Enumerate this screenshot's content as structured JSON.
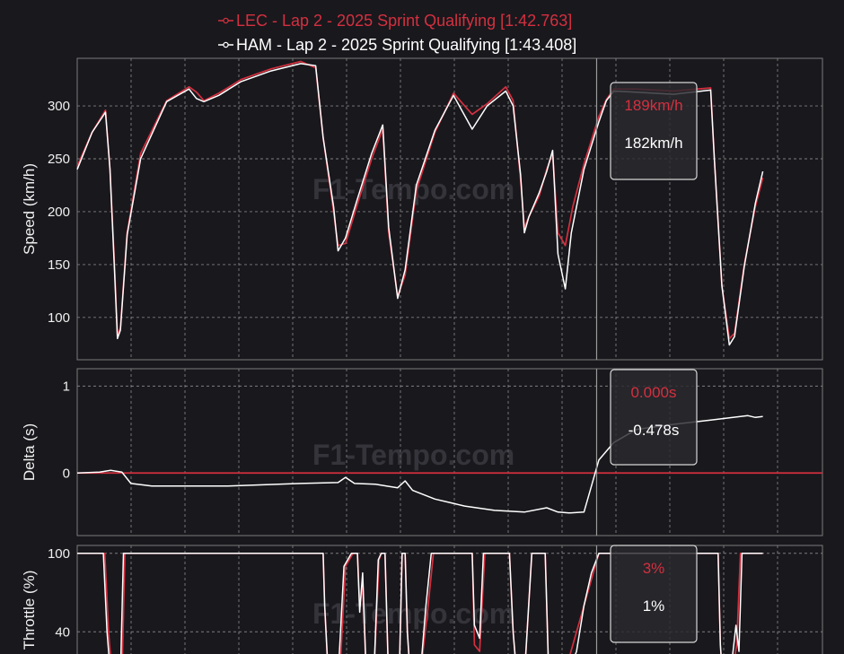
{
  "colors": {
    "background": "#19181d",
    "lec": "#d4303f",
    "ham": "#ffffff",
    "reference_line": "#d4303f",
    "cursor": "#9a9a9a"
  },
  "watermark": "F1-Tempo.com",
  "cursor_distance_fraction": 0.703,
  "chart_data": [
    {
      "type": "line",
      "legend_position": "top-center",
      "series": [
        {
          "name": "LEC - Lap 2 - 2025 Sprint Qualifying [1:42.763]"
        },
        {
          "name": "HAM - Lap 2 - 2025 Sprint Qualifying [1:43.408]"
        }
      ],
      "ylabel": "Speed (km/h)",
      "ylim": [
        60,
        345
      ],
      "yticks": [
        "100",
        "150",
        "200",
        "250",
        "300"
      ],
      "grid": true,
      "x_range": [
        0,
        1
      ],
      "lec": [
        [
          0,
          243
        ],
        [
          0.02,
          275
        ],
        [
          0.038,
          296
        ],
        [
          0.044,
          240
        ],
        [
          0.05,
          150
        ],
        [
          0.054,
          83
        ],
        [
          0.058,
          90
        ],
        [
          0.067,
          180
        ],
        [
          0.085,
          255
        ],
        [
          0.12,
          305
        ],
        [
          0.15,
          318
        ],
        [
          0.16,
          313
        ],
        [
          0.17,
          305
        ],
        [
          0.19,
          312
        ],
        [
          0.22,
          325
        ],
        [
          0.26,
          335
        ],
        [
          0.3,
          342
        ],
        [
          0.32,
          336
        ],
        [
          0.33,
          270
        ],
        [
          0.344,
          200
        ],
        [
          0.35,
          168
        ],
        [
          0.36,
          170
        ],
        [
          0.375,
          205
        ],
        [
          0.395,
          250
        ],
        [
          0.41,
          278
        ],
        [
          0.418,
          180
        ],
        [
          0.43,
          120
        ],
        [
          0.44,
          140
        ],
        [
          0.455,
          220
        ],
        [
          0.48,
          275
        ],
        [
          0.505,
          312
        ],
        [
          0.53,
          292
        ],
        [
          0.55,
          302
        ],
        [
          0.575,
          318
        ],
        [
          0.585,
          305
        ],
        [
          0.595,
          230
        ],
        [
          0.6,
          185
        ],
        [
          0.606,
          195
        ],
        [
          0.62,
          215
        ],
        [
          0.63,
          240
        ],
        [
          0.638,
          255
        ],
        [
          0.645,
          180
        ],
        [
          0.655,
          168
        ],
        [
          0.665,
          205
        ],
        [
          0.68,
          245
        ],
        [
          0.7,
          290
        ],
        [
          0.71,
          306
        ],
        [
          0.72,
          316
        ],
        [
          0.75,
          316
        ],
        [
          0.8,
          314
        ],
        [
          0.85,
          317
        ],
        [
          0.855,
          250
        ],
        [
          0.865,
          130
        ],
        [
          0.875,
          80
        ],
        [
          0.882,
          85
        ],
        [
          0.895,
          150
        ],
        [
          0.91,
          205
        ],
        [
          0.92,
          232
        ]
      ],
      "ham": [
        [
          0,
          240
        ],
        [
          0.02,
          275
        ],
        [
          0.038,
          294
        ],
        [
          0.044,
          240
        ],
        [
          0.05,
          145
        ],
        [
          0.054,
          80
        ],
        [
          0.058,
          88
        ],
        [
          0.067,
          178
        ],
        [
          0.085,
          250
        ],
        [
          0.12,
          304
        ],
        [
          0.15,
          316
        ],
        [
          0.16,
          307
        ],
        [
          0.17,
          304
        ],
        [
          0.19,
          310
        ],
        [
          0.22,
          323
        ],
        [
          0.26,
          333
        ],
        [
          0.3,
          340
        ],
        [
          0.32,
          338
        ],
        [
          0.33,
          270
        ],
        [
          0.344,
          205
        ],
        [
          0.35,
          163
        ],
        [
          0.36,
          175
        ],
        [
          0.375,
          210
        ],
        [
          0.395,
          255
        ],
        [
          0.41,
          282
        ],
        [
          0.418,
          185
        ],
        [
          0.43,
          118
        ],
        [
          0.44,
          145
        ],
        [
          0.455,
          225
        ],
        [
          0.48,
          277
        ],
        [
          0.505,
          310
        ],
        [
          0.53,
          278
        ],
        [
          0.55,
          300
        ],
        [
          0.575,
          314
        ],
        [
          0.585,
          300
        ],
        [
          0.595,
          235
        ],
        [
          0.6,
          180
        ],
        [
          0.606,
          195
        ],
        [
          0.62,
          218
        ],
        [
          0.63,
          238
        ],
        [
          0.638,
          258
        ],
        [
          0.645,
          160
        ],
        [
          0.655,
          127
        ],
        [
          0.663,
          180
        ],
        [
          0.68,
          240
        ],
        [
          0.7,
          285
        ],
        [
          0.71,
          305
        ],
        [
          0.72,
          314
        ],
        [
          0.75,
          313
        ],
        [
          0.8,
          311
        ],
        [
          0.85,
          315
        ],
        [
          0.855,
          250
        ],
        [
          0.865,
          130
        ],
        [
          0.875,
          74
        ],
        [
          0.882,
          82
        ],
        [
          0.895,
          148
        ],
        [
          0.91,
          208
        ],
        [
          0.92,
          238
        ]
      ],
      "tooltip": {
        "lec": "189km/h",
        "ham": "182km/h"
      }
    },
    {
      "type": "line",
      "ylabel": "Delta (s)",
      "ylim": [
        -0.72,
        1.2
      ],
      "yticks": [
        "0",
        "1"
      ],
      "grid": true,
      "x_range": [
        0,
        1
      ],
      "reference": 0,
      "ham": [
        [
          0,
          0
        ],
        [
          0.03,
          0.01
        ],
        [
          0.045,
          0.03
        ],
        [
          0.06,
          0.01
        ],
        [
          0.072,
          -0.12
        ],
        [
          0.1,
          -0.15
        ],
        [
          0.2,
          -0.15
        ],
        [
          0.3,
          -0.12
        ],
        [
          0.35,
          -0.11
        ],
        [
          0.36,
          -0.05
        ],
        [
          0.372,
          -0.12
        ],
        [
          0.4,
          -0.13
        ],
        [
          0.43,
          -0.17
        ],
        [
          0.44,
          -0.09
        ],
        [
          0.45,
          -0.2
        ],
        [
          0.48,
          -0.3
        ],
        [
          0.52,
          -0.38
        ],
        [
          0.56,
          -0.43
        ],
        [
          0.6,
          -0.45
        ],
        [
          0.63,
          -0.4
        ],
        [
          0.645,
          -0.45
        ],
        [
          0.66,
          -0.46
        ],
        [
          0.68,
          -0.45
        ],
        [
          0.69,
          -0.15
        ],
        [
          0.7,
          0.15
        ],
        [
          0.72,
          0.35
        ],
        [
          0.75,
          0.5
        ],
        [
          0.8,
          0.56
        ],
        [
          0.85,
          0.61
        ],
        [
          0.9,
          0.66
        ],
        [
          0.91,
          0.64
        ],
        [
          0.92,
          0.65
        ]
      ],
      "tooltip": {
        "lec": "0.000s",
        "ham": "-0.478s"
      }
    },
    {
      "type": "line",
      "ylabel": "Throttle (%)",
      "ylim": [
        10,
        106
      ],
      "yticks": [
        "40",
        "100"
      ],
      "grid": true,
      "x_range": [
        0,
        1
      ],
      "lec": [
        [
          0,
          100
        ],
        [
          0.03,
          100
        ],
        [
          0.037,
          100
        ],
        [
          0.042,
          40
        ],
        [
          0.047,
          5
        ],
        [
          0.06,
          5
        ],
        [
          0.064,
          100
        ],
        [
          0.33,
          100
        ],
        [
          0.332,
          60
        ],
        [
          0.337,
          5
        ],
        [
          0.352,
          5
        ],
        [
          0.36,
          90
        ],
        [
          0.37,
          100
        ],
        [
          0.376,
          100
        ],
        [
          0.379,
          60
        ],
        [
          0.383,
          75
        ],
        [
          0.388,
          5
        ],
        [
          0.398,
          5
        ],
        [
          0.405,
          95
        ],
        [
          0.408,
          100
        ],
        [
          0.413,
          100
        ],
        [
          0.417,
          20
        ],
        [
          0.422,
          5
        ],
        [
          0.432,
          5
        ],
        [
          0.436,
          100
        ],
        [
          0.44,
          100
        ],
        [
          0.443,
          40
        ],
        [
          0.447,
          5
        ],
        [
          0.46,
          5
        ],
        [
          0.47,
          55
        ],
        [
          0.478,
          100
        ],
        [
          0.53,
          100
        ],
        [
          0.533,
          30
        ],
        [
          0.54,
          25
        ],
        [
          0.547,
          100
        ],
        [
          0.58,
          100
        ],
        [
          0.585,
          40
        ],
        [
          0.59,
          5
        ],
        [
          0.6,
          5
        ],
        [
          0.61,
          100
        ],
        [
          0.628,
          100
        ],
        [
          0.632,
          20
        ],
        [
          0.636,
          5
        ],
        [
          0.645,
          5
        ],
        [
          0.66,
          20
        ],
        [
          0.675,
          50
        ],
        [
          0.69,
          80
        ],
        [
          0.7,
          100
        ],
        [
          0.86,
          100
        ],
        [
          0.863,
          30
        ],
        [
          0.866,
          5
        ],
        [
          0.878,
          5
        ],
        [
          0.885,
          30
        ],
        [
          0.89,
          100
        ],
        [
          0.92,
          100
        ]
      ],
      "ham": [
        [
          0,
          100
        ],
        [
          0.03,
          100
        ],
        [
          0.035,
          100
        ],
        [
          0.04,
          40
        ],
        [
          0.045,
          5
        ],
        [
          0.058,
          5
        ],
        [
          0.062,
          100
        ],
        [
          0.33,
          100
        ],
        [
          0.332,
          60
        ],
        [
          0.337,
          5
        ],
        [
          0.35,
          5
        ],
        [
          0.358,
          90
        ],
        [
          0.368,
          100
        ],
        [
          0.376,
          100
        ],
        [
          0.379,
          55
        ],
        [
          0.383,
          85
        ],
        [
          0.388,
          5
        ],
        [
          0.398,
          5
        ],
        [
          0.404,
          95
        ],
        [
          0.408,
          100
        ],
        [
          0.413,
          100
        ],
        [
          0.417,
          20
        ],
        [
          0.422,
          5
        ],
        [
          0.432,
          5
        ],
        [
          0.436,
          100
        ],
        [
          0.44,
          100
        ],
        [
          0.443,
          40
        ],
        [
          0.447,
          5
        ],
        [
          0.46,
          5
        ],
        [
          0.468,
          60
        ],
        [
          0.475,
          100
        ],
        [
          0.53,
          100
        ],
        [
          0.533,
          45
        ],
        [
          0.54,
          35
        ],
        [
          0.545,
          100
        ],
        [
          0.58,
          100
        ],
        [
          0.585,
          40
        ],
        [
          0.59,
          5
        ],
        [
          0.6,
          5
        ],
        [
          0.61,
          100
        ],
        [
          0.628,
          100
        ],
        [
          0.632,
          20
        ],
        [
          0.636,
          5
        ],
        [
          0.645,
          5
        ],
        [
          0.66,
          10
        ],
        [
          0.67,
          25
        ],
        [
          0.68,
          60
        ],
        [
          0.69,
          85
        ],
        [
          0.7,
          100
        ],
        [
          0.86,
          100
        ],
        [
          0.863,
          30
        ],
        [
          0.866,
          5
        ],
        [
          0.876,
          5
        ],
        [
          0.884,
          45
        ],
        [
          0.888,
          25
        ],
        [
          0.892,
          100
        ],
        [
          0.92,
          100
        ]
      ],
      "tooltip": {
        "lec": "3%",
        "ham": "1%"
      }
    }
  ]
}
